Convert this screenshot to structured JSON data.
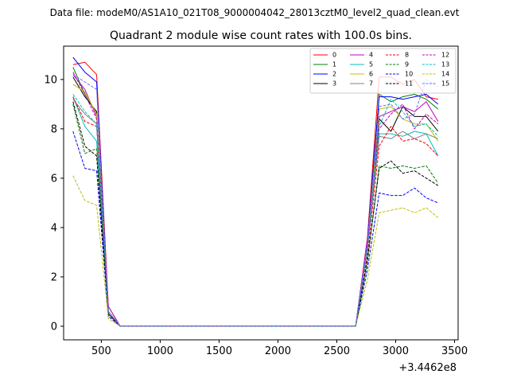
{
  "figure": {
    "suptitle": "Data file: modeM0/AS1A10_021T08_9000004042_28013cztM0_level2_quad_clean.evt",
    "title": "Quadrant 2 module wise count rates with 100.0s bins.",
    "offset_label": "+3.4462e8"
  },
  "chart_data": {
    "type": "line",
    "title": "Quadrant 2 module wise count rates with 100.0s bins.",
    "xlabel": "",
    "ylabel": "",
    "x_offset": 344620000,
    "xlim": [
      180,
      3530
    ],
    "ylim": [
      -0.55,
      11.35
    ],
    "xticks": [
      500,
      1000,
      1500,
      2000,
      2500,
      3000,
      3500
    ],
    "yticks": [
      0,
      2,
      4,
      6,
      8,
      10
    ],
    "grid": false,
    "legend_position": "top-right",
    "x": [
      260,
      360,
      460,
      560,
      660,
      760,
      860,
      960,
      1060,
      1160,
      1260,
      1360,
      1460,
      1560,
      1660,
      1760,
      1860,
      1960,
      2060,
      2160,
      2260,
      2360,
      2460,
      2560,
      2660,
      2760,
      2860,
      2960,
      3060,
      3160,
      3260,
      3360
    ],
    "series": [
      {
        "name": "0",
        "color": "#ff0000",
        "dash": "solid",
        "values": [
          10.6,
          10.7,
          10.2,
          0.8,
          0,
          0,
          0,
          0,
          0,
          0,
          0,
          0,
          0,
          0,
          0,
          0,
          0,
          0,
          0,
          0,
          0,
          0,
          0,
          0,
          0,
          3.6,
          10.1,
          10.1,
          9.8,
          10.0,
          9.3,
          9.2
        ]
      },
      {
        "name": "1",
        "color": "#008000",
        "dash": "solid",
        "values": [
          10.5,
          9.4,
          8.6,
          0.6,
          0,
          0,
          0,
          0,
          0,
          0,
          0,
          0,
          0,
          0,
          0,
          0,
          0,
          0,
          0,
          0,
          0,
          0,
          0,
          0,
          0,
          3.4,
          9.4,
          9.1,
          9.3,
          9.4,
          9.2,
          8.8
        ]
      },
      {
        "name": "2",
        "color": "#0000ff",
        "dash": "solid",
        "values": [
          10.9,
          10.3,
          9.9,
          0.5,
          0,
          0,
          0,
          0,
          0,
          0,
          0,
          0,
          0,
          0,
          0,
          0,
          0,
          0,
          0,
          0,
          0,
          0,
          0,
          0,
          0,
          3.5,
          9.3,
          9.3,
          9.2,
          9.3,
          9.4,
          9.0
        ]
      },
      {
        "name": "3",
        "color": "#000000",
        "dash": "solid",
        "values": [
          10.1,
          9.3,
          8.7,
          0.5,
          0,
          0,
          0,
          0,
          0,
          0,
          0,
          0,
          0,
          0,
          0,
          0,
          0,
          0,
          0,
          0,
          0,
          0,
          0,
          0,
          0,
          3.3,
          8.4,
          7.9,
          8.9,
          8.5,
          8.5,
          7.9
        ]
      },
      {
        "name": "4",
        "color": "#c000c0",
        "dash": "solid",
        "values": [
          10.2,
          9.6,
          8.5,
          0.8,
          0,
          0,
          0,
          0,
          0,
          0,
          0,
          0,
          0,
          0,
          0,
          0,
          0,
          0,
          0,
          0,
          0,
          0,
          0,
          0,
          0,
          3.5,
          8.5,
          8.7,
          8.9,
          8.7,
          9.1,
          8.3
        ]
      },
      {
        "name": "5",
        "color": "#00c0c0",
        "dash": "solid",
        "values": [
          9.3,
          8.1,
          7.5,
          0.6,
          0,
          0,
          0,
          0,
          0,
          0,
          0,
          0,
          0,
          0,
          0,
          0,
          0,
          0,
          0,
          0,
          0,
          0,
          0,
          0,
          0,
          3.2,
          7.8,
          7.8,
          7.7,
          7.9,
          7.8,
          6.9
        ]
      },
      {
        "name": "6",
        "color": "#c0c000",
        "dash": "solid",
        "values": [
          9.8,
          9.5,
          8.6,
          0.6,
          0,
          0,
          0,
          0,
          0,
          0,
          0,
          0,
          0,
          0,
          0,
          0,
          0,
          0,
          0,
          0,
          0,
          0,
          0,
          0,
          0,
          3.1,
          8.8,
          8.9,
          8.4,
          8.2,
          8.2,
          7.5
        ]
      },
      {
        "name": "7",
        "color": "#808080",
        "dash": "solid",
        "values": [
          9.2,
          8.6,
          8.2,
          0.5,
          0,
          0,
          0,
          0,
          0,
          0,
          0,
          0,
          0,
          0,
          0,
          0,
          0,
          0,
          0,
          0,
          0,
          0,
          0,
          0,
          0,
          3.2,
          7.7,
          7.6,
          7.9,
          7.6,
          7.8,
          7.6
        ]
      },
      {
        "name": "8",
        "color": "#ff0000",
        "dash": "dashed",
        "values": [
          9.3,
          8.3,
          8.1,
          0.5,
          0,
          0,
          0,
          0,
          0,
          0,
          0,
          0,
          0,
          0,
          0,
          0,
          0,
          0,
          0,
          0,
          0,
          0,
          0,
          0,
          0,
          2.9,
          7.3,
          8.1,
          7.5,
          7.6,
          7.4,
          6.9
        ]
      },
      {
        "name": "9",
        "color": "#008000",
        "dash": "dashed",
        "values": [
          9.0,
          7.0,
          7.2,
          0.5,
          0,
          0,
          0,
          0,
          0,
          0,
          0,
          0,
          0,
          0,
          0,
          0,
          0,
          0,
          0,
          0,
          0,
          0,
          0,
          0,
          0,
          2.6,
          6.5,
          6.4,
          6.5,
          6.4,
          6.5,
          5.8
        ]
      },
      {
        "name": "10",
        "color": "#0000ff",
        "dash": "dashed",
        "values": [
          7.9,
          6.4,
          6.3,
          0.4,
          0,
          0,
          0,
          0,
          0,
          0,
          0,
          0,
          0,
          0,
          0,
          0,
          0,
          0,
          0,
          0,
          0,
          0,
          0,
          0,
          0,
          2.3,
          5.4,
          5.3,
          5.3,
          5.6,
          5.2,
          5.0
        ]
      },
      {
        "name": "11",
        "color": "#000000",
        "dash": "dashed",
        "values": [
          9.1,
          7.3,
          6.9,
          0.5,
          0,
          0,
          0,
          0,
          0,
          0,
          0,
          0,
          0,
          0,
          0,
          0,
          0,
          0,
          0,
          0,
          0,
          0,
          0,
          0,
          0,
          2.7,
          6.4,
          6.7,
          6.2,
          6.3,
          6.0,
          5.7
        ]
      },
      {
        "name": "12",
        "color": "#c000c0",
        "dash": "dashed",
        "values": [
          10.3,
          9.4,
          8.4,
          0.6,
          0,
          0,
          0,
          0,
          0,
          0,
          0,
          0,
          0,
          0,
          0,
          0,
          0,
          0,
          0,
          0,
          0,
          0,
          0,
          0,
          0,
          3.2,
          8.0,
          8.6,
          9.0,
          8.0,
          8.6,
          8.2
        ]
      },
      {
        "name": "13",
        "color": "#00c0c0",
        "dash": "dashed",
        "values": [
          9.4,
          8.7,
          8.2,
          0.6,
          0,
          0,
          0,
          0,
          0,
          0,
          0,
          0,
          0,
          0,
          0,
          0,
          0,
          0,
          0,
          0,
          0,
          0,
          0,
          0,
          0,
          3.1,
          8.1,
          9.2,
          8.7,
          8.1,
          8.2,
          7.7
        ]
      },
      {
        "name": "14",
        "color": "#c0c000",
        "dash": "dashed",
        "values": [
          6.1,
          5.1,
          4.9,
          0.3,
          0,
          0,
          0,
          0,
          0,
          0,
          0,
          0,
          0,
          0,
          0,
          0,
          0,
          0,
          0,
          0,
          0,
          0,
          0,
          0,
          0,
          1.9,
          4.6,
          4.7,
          4.8,
          4.6,
          4.8,
          4.4
        ]
      },
      {
        "name": "15",
        "color": "#7070ff",
        "dash": "dashed",
        "values": [
          10.2,
          9.9,
          9.6,
          0.6,
          0,
          0,
          0,
          0,
          0,
          0,
          0,
          0,
          0,
          0,
          0,
          0,
          0,
          0,
          0,
          0,
          0,
          0,
          0,
          0,
          0,
          3.4,
          8.9,
          9.0,
          8.4,
          8.6,
          10.0,
          9.7
        ]
      }
    ]
  }
}
